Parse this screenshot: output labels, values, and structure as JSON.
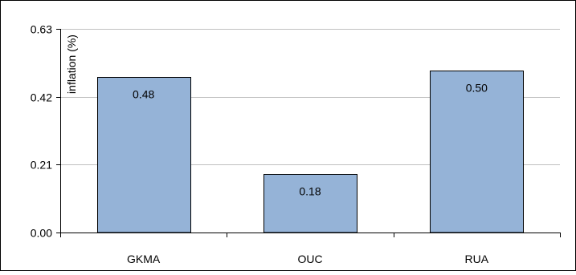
{
  "chart_data": {
    "type": "bar",
    "categories": [
      "GKMA",
      "OUC",
      "RUA"
    ],
    "values": [
      0.48,
      0.18,
      0.5
    ],
    "data_labels": [
      "0.48",
      "0.18",
      "0.50"
    ],
    "title": "",
    "xlabel": "",
    "ylabel": "inflation (%)",
    "ylim": [
      0,
      0.63
    ],
    "yticks": [
      0.0,
      0.21,
      0.42,
      0.63
    ],
    "ytick_labels": [
      "0.00",
      "0.21",
      "0.42",
      "0.63"
    ],
    "grid": true,
    "legend": "none",
    "colors": {
      "bar_fill": "#95b3d7",
      "bar_stroke": "#000000",
      "grid": "#c0c0c0",
      "axis": "#000000",
      "frame": "#000000"
    }
  }
}
